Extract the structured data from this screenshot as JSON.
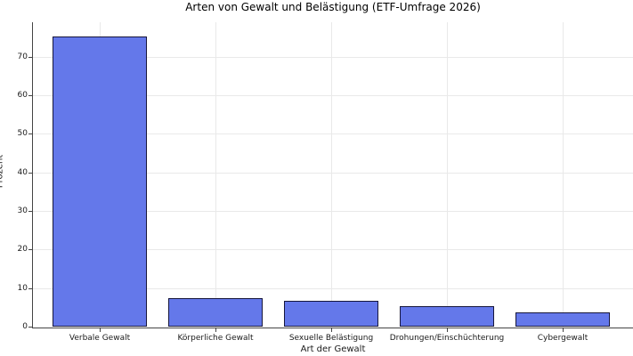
{
  "chart_data": {
    "type": "bar",
    "title": "Arten von Gewalt und Belästigung (ETF-Umfrage 2026)",
    "xlabel": "Art der Gewalt",
    "ylabel": "Prozent",
    "categories": [
      "Verbale Gewalt",
      "Körperliche Gewalt",
      "Sexuelle Belästigung",
      "Drohungen/Einschüchterung",
      "Cybergewalt"
    ],
    "values": [
      75.4,
      7.5,
      6.9,
      5.5,
      3.9
    ],
    "yticks": [
      0,
      10,
      20,
      30,
      40,
      50,
      60,
      70
    ],
    "ylim": [
      0,
      79
    ],
    "grid": true,
    "legend_position": "none",
    "colors": {
      "bar_fill": "#6478ea",
      "bar_edge": "#16163c",
      "grid": "#e9e9e9",
      "axis": "#444444",
      "text": "#1a1a1a",
      "background": "#ffffff"
    }
  }
}
